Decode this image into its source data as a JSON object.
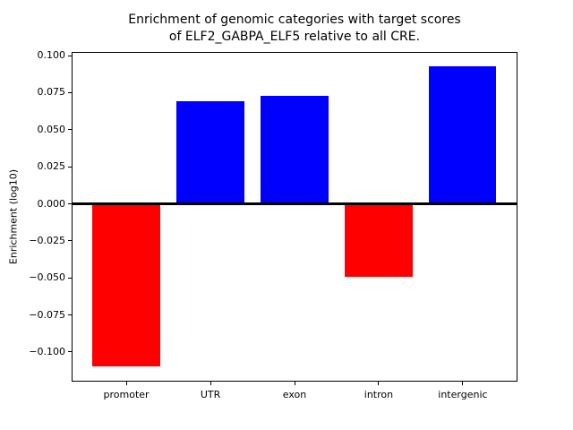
{
  "chart_data": {
    "type": "bar",
    "title": "Enrichment of genomic categories with target scores\nof ELF2_GABPA_ELF5 relative to all CRE.",
    "title_lines": [
      "Enrichment of genomic categories with target scores",
      "of ELF2_GABPA_ELF5 relative to all CRE."
    ],
    "xlabel": "",
    "ylabel": "Enrichment (log10)",
    "categories": [
      "promoter",
      "UTR",
      "exon",
      "intron",
      "intergenic"
    ],
    "values": [
      -0.11,
      0.069,
      0.073,
      -0.049,
      0.093
    ],
    "bar_colors": [
      "#ff0000",
      "#0000ff",
      "#0000ff",
      "#ff0000",
      "#0000ff"
    ],
    "positive_color": "#0000ff",
    "negative_color": "#ff0000",
    "ylim": [
      -0.12,
      0.1025
    ],
    "yticks": [
      0.1,
      0.075,
      0.05,
      0.025,
      0.0,
      -0.025,
      -0.05,
      -0.075,
      -0.1
    ],
    "ytick_labels": [
      "0.100",
      "0.075",
      "0.050",
      "0.025",
      "0.000",
      "−0.025",
      "−0.050",
      "−0.075",
      "−0.100"
    ],
    "zero_line": true,
    "grid": false,
    "legend": null,
    "axis_color": "#000000",
    "background_color": "#ffffff"
  }
}
